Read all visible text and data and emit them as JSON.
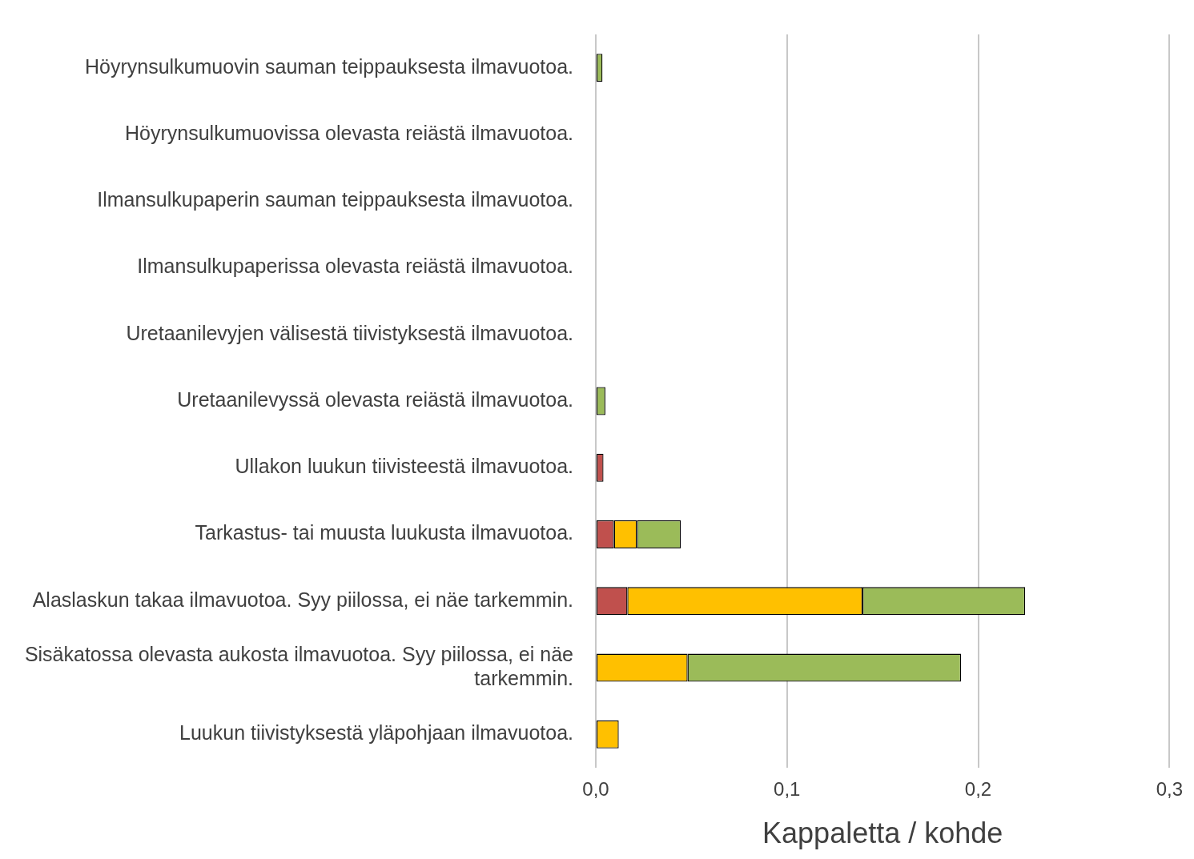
{
  "chart_data": {
    "type": "bar",
    "orientation": "horizontal",
    "stacked": true,
    "categories": [
      "Höyrynsulkumuovin sauman teippauksesta ilmavuotoa.",
      "Höyrynsulkumuovissa olevasta reiästä ilmavuotoa.",
      "Ilmansulkupaperin sauman teippauksesta ilmavuotoa.",
      "Ilmansulkupaperissa olevasta reiästä ilmavuotoa.",
      "Uretaanilevyjen välisestä tiivistyksestä ilmavuotoa.",
      "Uretaanilevyssä olevasta reiästä ilmavuotoa.",
      "Ullakon luukun tiivisteestä ilmavuotoa.",
      "Tarkastus- tai muusta luukusta ilmavuotoa.",
      "Alaslaskun takaa ilmavuotoa. Syy piilossa, ei näe tarkemmin.",
      "Sisäkatossa olevasta aukosta ilmavuotoa. Syy piilossa, ei näe tarkemmin.",
      "Luukun tiivistyksestä yläpohjaan ilmavuotoa."
    ],
    "series": [
      {
        "color": "#c0504d",
        "values": [
          null,
          null,
          null,
          null,
          null,
          null,
          0.004,
          0.0095,
          0.0165,
          null,
          null
        ]
      },
      {
        "color": "#ffc000",
        "values": [
          null,
          null,
          null,
          null,
          null,
          null,
          null,
          0.012,
          0.123,
          0.048,
          0.012
        ]
      },
      {
        "color": "#9bbb59",
        "values": [
          0.0035,
          null,
          null,
          null,
          null,
          0.005,
          null,
          0.023,
          0.085,
          0.143,
          null
        ]
      }
    ],
    "xlim": [
      0,
      0.3
    ],
    "xticks": [
      {
        "value": 0,
        "label": "0,0"
      },
      {
        "value": 0.1,
        "label": "0,1"
      },
      {
        "value": 0.2,
        "label": "0,2"
      },
      {
        "value": 0.3,
        "label": "0,3"
      }
    ],
    "xlabel": "Kappaletta / kohde",
    "grid": "x"
  }
}
